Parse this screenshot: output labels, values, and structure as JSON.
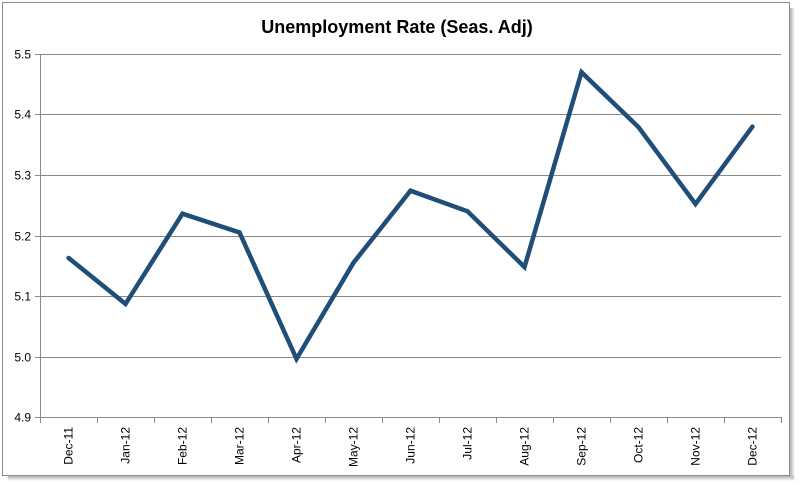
{
  "chart_data": {
    "type": "line",
    "title": "Unemployment Rate (Seas. Adj)",
    "xlabel": "",
    "ylabel": "",
    "categories": [
      "Dec-11",
      "Jan-12",
      "Feb-12",
      "Mar-12",
      "Apr-12",
      "May-12",
      "Jun-12",
      "Jul-12",
      "Aug-12",
      "Sep-12",
      "Oct-12",
      "Nov-12",
      "Dec-12"
    ],
    "series": [
      {
        "values": [
          5.163,
          5.087,
          5.236,
          5.205,
          4.996,
          5.155,
          5.274,
          5.24,
          5.148,
          5.47,
          5.379,
          5.252,
          5.38
        ]
      }
    ],
    "ylim": [
      4.9,
      5.5
    ],
    "yticks": [
      "4.9",
      "5.0",
      "5.1",
      "5.2",
      "5.3",
      "5.4",
      "5.5"
    ],
    "grid": true,
    "legend": "none",
    "line_color": "#1F4E79"
  }
}
